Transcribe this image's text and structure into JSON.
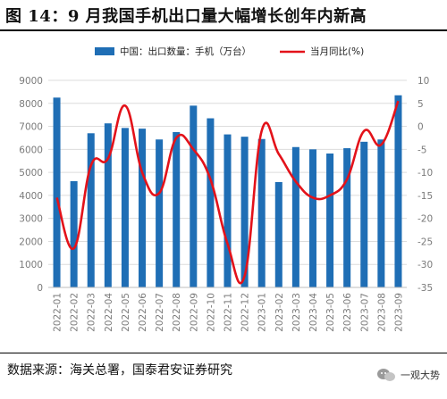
{
  "title": "图 14：9 月我国手机出口量大幅增长创年内新高",
  "source": "数据来源：海关总署，国泰君安证券研究",
  "watermark": "一观大势",
  "colors": {
    "bar": "#1f6eb5",
    "line": "#e3121a",
    "grid": "#dcdcdc"
  },
  "chart_data": {
    "type": "bar+line",
    "categories": [
      "2022-01",
      "2022-02",
      "2022-03",
      "2022-04",
      "2022-05",
      "2022-06",
      "2022-07",
      "2022-08",
      "2022-09",
      "2022-10",
      "2022-11",
      "2022-12",
      "2023-01",
      "2023-02",
      "2023-03",
      "2023-04",
      "2023-05",
      "2023-06",
      "2023-07",
      "2023-08",
      "2023-09"
    ],
    "series": [
      {
        "name": "中国：出口数量：手机（万台）",
        "type": "bar",
        "axis": "left",
        "values": [
          8250,
          4620,
          6700,
          7130,
          6930,
          6900,
          6430,
          6750,
          7900,
          7350,
          6650,
          6550,
          6450,
          4580,
          6100,
          6000,
          5820,
          6050,
          6330,
          6430,
          8350
        ]
      },
      {
        "name": "当月同比(%)",
        "type": "line",
        "axis": "right",
        "values": [
          -15.5,
          -26.5,
          -8.5,
          -7.0,
          4.5,
          -10.0,
          -14.5,
          -2.5,
          -5.0,
          -11.5,
          -25.5,
          -32.5,
          -1.0,
          -6.0,
          -12.0,
          -15.5,
          -15.0,
          -11.5,
          -1.0,
          -4.0,
          5.5
        ]
      }
    ],
    "y_left": {
      "min": 0,
      "max": 9000,
      "step": 1000,
      "ticks": [
        "0",
        "1000",
        "2000",
        "3000",
        "4000",
        "5000",
        "6000",
        "7000",
        "8000",
        "9000"
      ]
    },
    "y_right": {
      "min": -35,
      "max": 10,
      "step": 5,
      "ticks": [
        "-35",
        "-30",
        "-25",
        "-20",
        "-15",
        "-10",
        "-5",
        "0",
        "5",
        "10"
      ]
    },
    "grid": true,
    "legend_position": "top"
  }
}
